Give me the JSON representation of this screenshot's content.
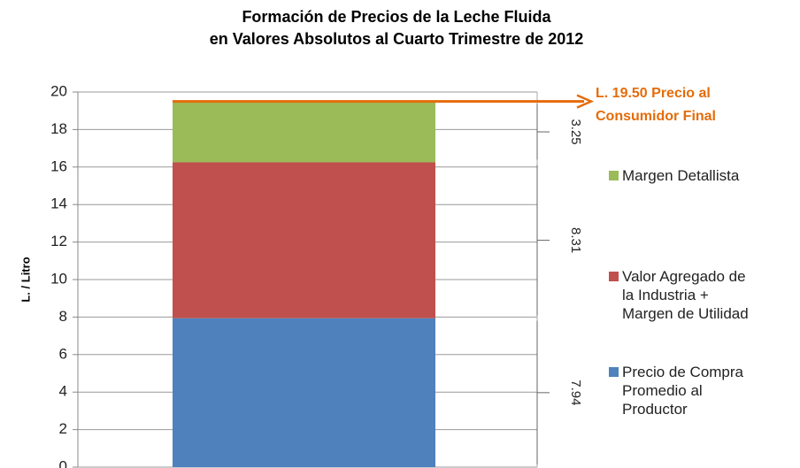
{
  "chart_data": {
    "type": "stacked_bar",
    "title": [
      "Formación de Precios de la Leche Fluida",
      "en Valores Absolutos al Cuarto Trimestre de 2012"
    ],
    "y_label": "L. / Litro",
    "series": [
      {
        "name": "Precio de Compra Promedio al Productor",
        "color": "#4f81bd",
        "values": [
          7.94
        ]
      },
      {
        "name": "Valor Agregado de la Industria + Margen de Utilidad",
        "color": "#c0504d",
        "values": [
          8.31
        ]
      },
      {
        "name": "Margen Detallista",
        "color": "#9bbb59",
        "values": [
          3.25
        ]
      }
    ],
    "ylim": [
      0,
      20
    ],
    "yticks": [
      0,
      2,
      4,
      6,
      8,
      10,
      12,
      14,
      16,
      18,
      20
    ],
    "grid": true,
    "annotation": {
      "value": 19.5,
      "color": "#e46c0a",
      "lines": [
        "L. 19.50 Precio al",
        "Consumidor Final"
      ]
    }
  }
}
